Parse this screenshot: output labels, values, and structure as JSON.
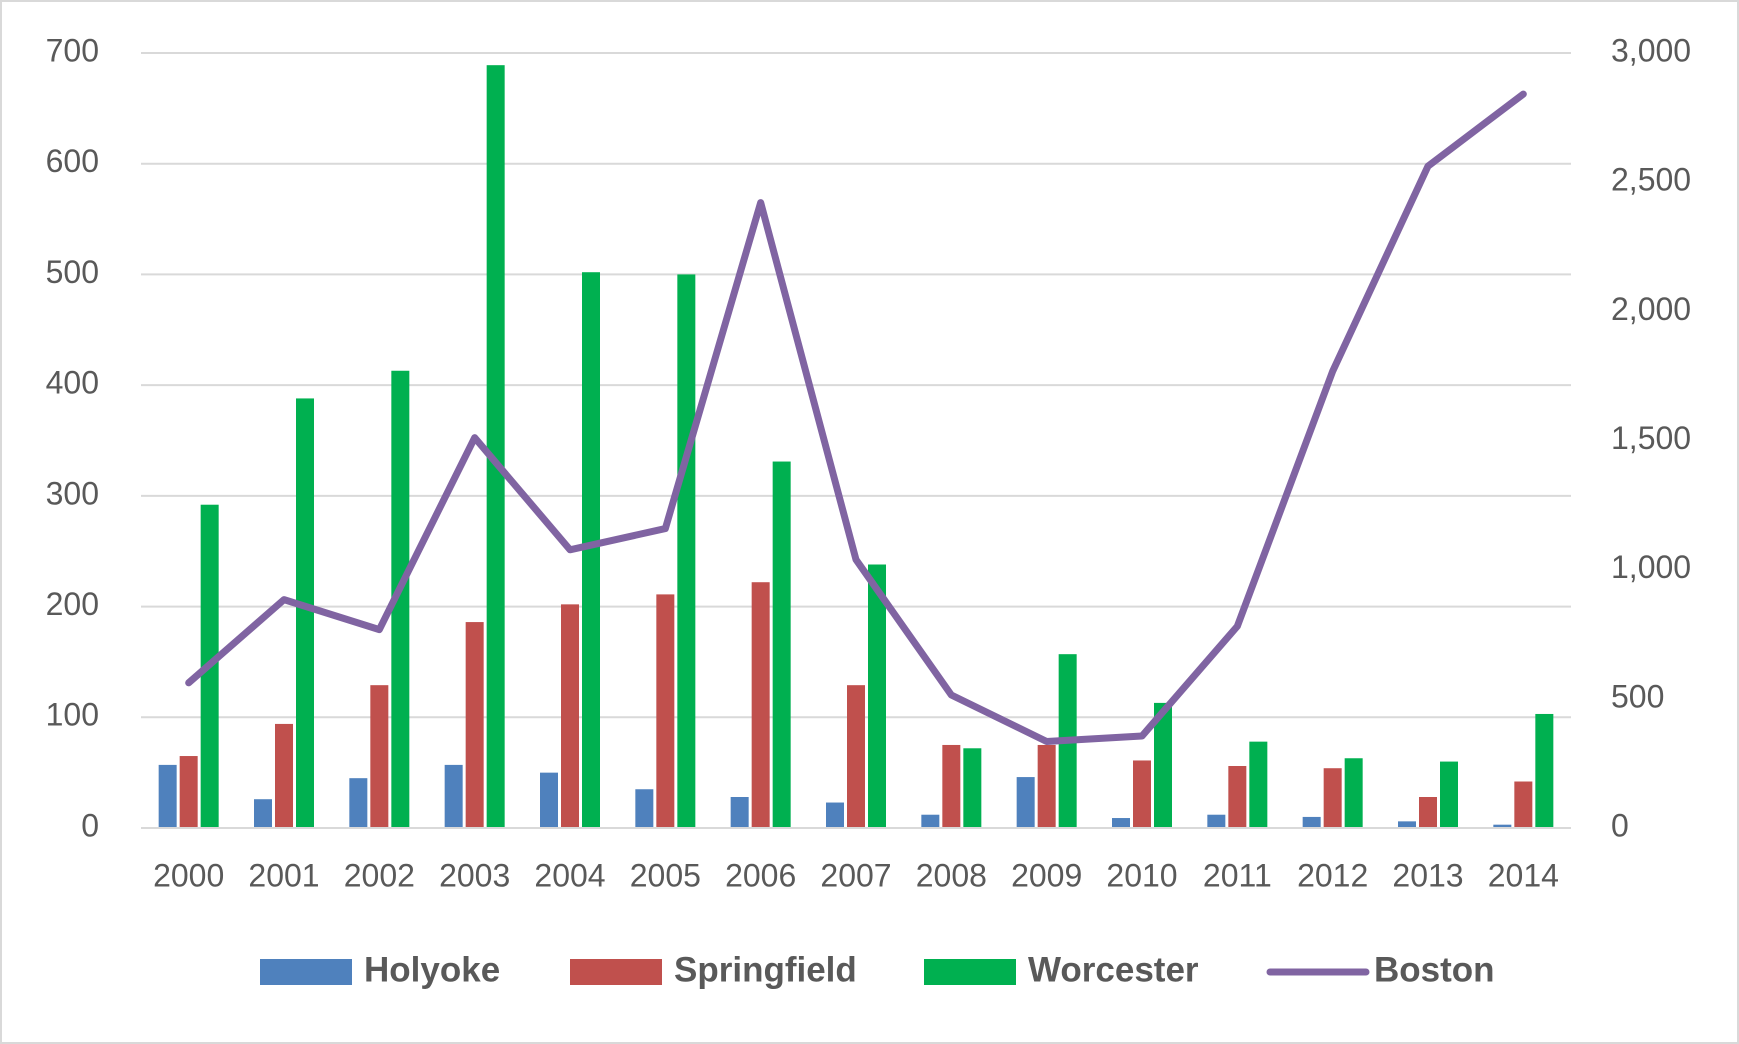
{
  "chart_data": {
    "type": "bar",
    "categories": [
      "2000",
      "2001",
      "2002",
      "2003",
      "2004",
      "2005",
      "2006",
      "2007",
      "2008",
      "2009",
      "2010",
      "2011",
      "2012",
      "2013",
      "2014"
    ],
    "series": [
      {
        "name": "Holyoke",
        "color": "#4f81bd",
        "values": [
          57,
          26,
          45,
          57,
          50,
          35,
          28,
          23,
          12,
          46,
          9,
          12,
          10,
          6,
          3
        ]
      },
      {
        "name": "Springfield",
        "color": "#c0504d",
        "values": [
          65,
          94,
          129,
          186,
          202,
          211,
          222,
          129,
          75,
          75,
          61,
          56,
          54,
          28,
          42
        ]
      },
      {
        "name": "Worcester",
        "color": "#00b050",
        "values": [
          292,
          388,
          413,
          689,
          502,
          500,
          331,
          238,
          72,
          157,
          113,
          78,
          63,
          60,
          103
        ]
      },
      {
        "name": "Boston",
        "color": "#8064a2",
        "type": "line",
        "axis": "y2",
        "values": [
          562,
          884,
          768,
          1511,
          1077,
          1159,
          2421,
          1039,
          515,
          335,
          356,
          781,
          1768,
          2562,
          2841
        ]
      }
    ],
    "ylim": [
      0,
      700
    ],
    "yticks": [
      0,
      100,
      200,
      300,
      400,
      500,
      600,
      700
    ],
    "y2lim": [
      0,
      3000
    ],
    "y2ticks": [
      0,
      500,
      {
        "value": 1000,
        "label": "1,000"
      },
      {
        "value": 1500,
        "label": "1,500"
      },
      {
        "value": 2000,
        "label": "2,000"
      },
      {
        "value": 2500,
        "label": "2,500"
      },
      {
        "value": 3000,
        "label": "3,000"
      }
    ],
    "grid": true,
    "legend": "bottom"
  }
}
